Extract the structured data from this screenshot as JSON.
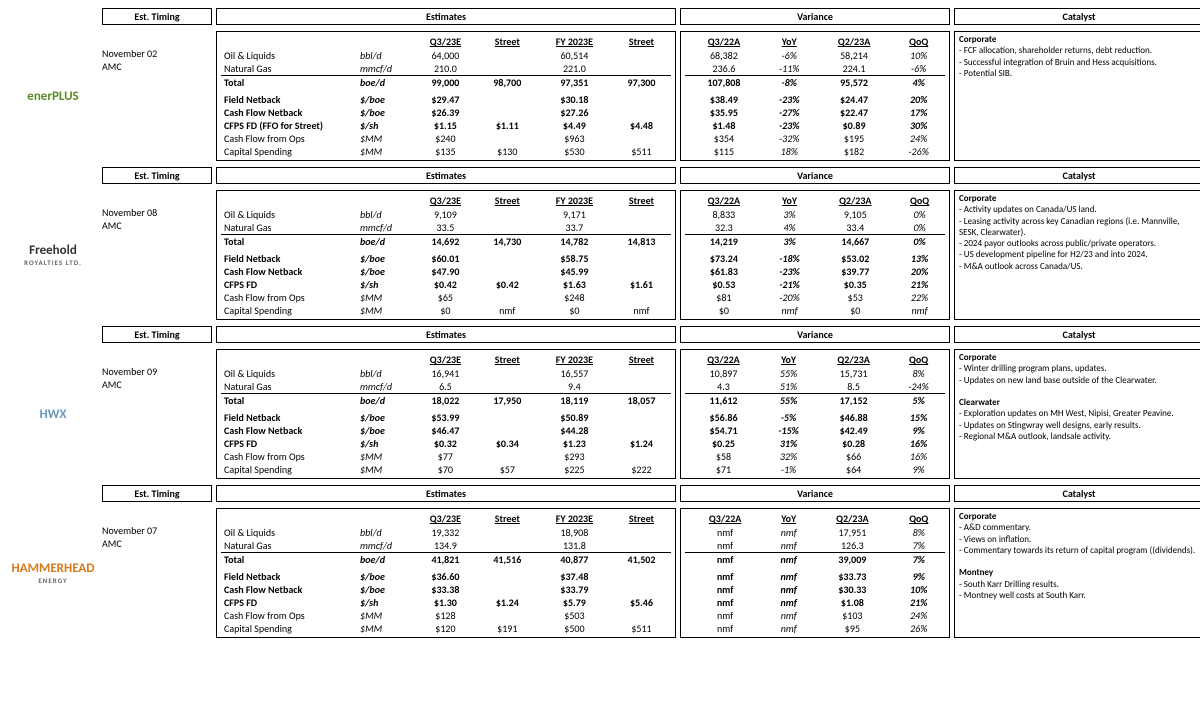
{
  "headers": {
    "timing": "Est. Timing",
    "estimates": "Estimates",
    "variance": "Variance",
    "catalyst": "Catalyst"
  },
  "est_cols": [
    "Q3/23E",
    "Street",
    "FY 2023E",
    "Street"
  ],
  "var_cols": [
    "Q3/22A",
    "YoY",
    "Q2/23A",
    "QoQ"
  ],
  "metrics": [
    {
      "label": "Oil & Liquids",
      "unit": "bbl/d",
      "bold": false,
      "top": false
    },
    {
      "label": "Natural Gas",
      "unit": "mmcf/d",
      "bold": false,
      "top": false
    },
    {
      "label": "Total",
      "unit": "boe/d",
      "bold": true,
      "top": true
    },
    {
      "label": "Field Netback",
      "unit": "$/boe",
      "bold": true,
      "top": false,
      "gap": true
    },
    {
      "label": "Cash Flow Netback",
      "unit": "$/boe",
      "bold": true,
      "top": false
    },
    {
      "label": "CFPS FD",
      "unit": "$/sh",
      "bold": true,
      "top": false
    },
    {
      "label": "Cash Flow from Ops",
      "unit": "$MM",
      "bold": false,
      "top": false
    },
    {
      "label": "Capital Spending",
      "unit": "$MM",
      "bold": false,
      "top": false
    }
  ],
  "companies": [
    {
      "logo": "enerPLUS",
      "logo_color": "#5b8c2a",
      "timing": "November 02",
      "amc": "AMC",
      "cfps_label": "CFPS FD (FFO for Street)",
      "est": [
        [
          "64,000",
          "",
          "60,514",
          ""
        ],
        [
          "210.0",
          "",
          "221.0",
          ""
        ],
        [
          "99,000",
          "98,700",
          "97,351",
          "97,300"
        ],
        [
          "$29.47",
          "",
          "$30.18",
          ""
        ],
        [
          "$26.39",
          "",
          "$27.26",
          ""
        ],
        [
          "$1.15",
          "$1.11",
          "$4.49",
          "$4.48"
        ],
        [
          "$240",
          "",
          "$963",
          ""
        ],
        [
          "$135",
          "$130",
          "$530",
          "$511"
        ]
      ],
      "var": [
        [
          "68,382",
          "-6%",
          "58,214",
          "10%"
        ],
        [
          "236.6",
          "-11%",
          "224.1",
          "-6%"
        ],
        [
          "107,808",
          "-8%",
          "95,572",
          "4%"
        ],
        [
          "$38.49",
          "-23%",
          "$24.47",
          "20%"
        ],
        [
          "$35.95",
          "-27%",
          "$22.47",
          "17%"
        ],
        [
          "$1.48",
          "-23%",
          "$0.89",
          "30%"
        ],
        [
          "$354",
          "-32%",
          "$195",
          "24%"
        ],
        [
          "$115",
          "18%",
          "$182",
          "-26%"
        ]
      ],
      "catalyst": "<b>Corporate</b><br>- FCF allocation, shareholder returns, debt reduction.<br>- Successful integration of Bruin and Hess acquisitions.<br>- Potential SIB."
    },
    {
      "logo": "Freehold",
      "logo_sub": "ROYALTIES LTD.",
      "logo_color": "#333",
      "timing": "November 08",
      "amc": "AMC",
      "est": [
        [
          "9,109",
          "",
          "9,171",
          ""
        ],
        [
          "33.5",
          "",
          "33.7",
          ""
        ],
        [
          "14,692",
          "14,730",
          "14,782",
          "14,813"
        ],
        [
          "$60.01",
          "",
          "$58.75",
          ""
        ],
        [
          "$47.90",
          "",
          "$45.99",
          ""
        ],
        [
          "$0.42",
          "$0.42",
          "$1.63",
          "$1.61"
        ],
        [
          "$65",
          "",
          "$248",
          ""
        ],
        [
          "$0",
          "nmf",
          "$0",
          "nmf"
        ]
      ],
      "var": [
        [
          "8,833",
          "3%",
          "9,105",
          "0%"
        ],
        [
          "32.3",
          "4%",
          "33.4",
          "0%"
        ],
        [
          "14,219",
          "3%",
          "14,667",
          "0%"
        ],
        [
          "$73.24",
          "-18%",
          "$53.02",
          "13%"
        ],
        [
          "$61.83",
          "-23%",
          "$39.77",
          "20%"
        ],
        [
          "$0.53",
          "-21%",
          "$0.35",
          "21%"
        ],
        [
          "$81",
          "-20%",
          "$53",
          "22%"
        ],
        [
          "$0",
          "nmf",
          "$0",
          "nmf"
        ]
      ],
      "catalyst": "<b>Corporate</b><br>- Activity updates on Canada/US land.<br>- Leasing activity across key Canadian regions (i.e. Mannville, SESK, Clearwater).<br>- 2024 payor outlooks across public/private operators.<br>- US development pipeline for H2/23 and into 2024.<br>- M&A outlook across Canada/US."
    },
    {
      "logo": "HWX",
      "logo_color": "#6a9bc4",
      "timing": "November 09",
      "amc": "AMC",
      "est": [
        [
          "16,941",
          "",
          "16,557",
          ""
        ],
        [
          "6.5",
          "",
          "9.4",
          ""
        ],
        [
          "18,022",
          "17,950",
          "18,119",
          "18,057"
        ],
        [
          "$53.99",
          "",
          "$50.89",
          ""
        ],
        [
          "$46.47",
          "",
          "$44.28",
          ""
        ],
        [
          "$0.32",
          "$0.34",
          "$1.23",
          "$1.24"
        ],
        [
          "$77",
          "",
          "$293",
          ""
        ],
        [
          "$70",
          "$57",
          "$225",
          "$222"
        ]
      ],
      "var": [
        [
          "10,897",
          "55%",
          "15,731",
          "8%"
        ],
        [
          "4.3",
          "51%",
          "8.5",
          "-24%"
        ],
        [
          "11,612",
          "55%",
          "17,152",
          "5%"
        ],
        [
          "$56.86",
          "-5%",
          "$46.88",
          "15%"
        ],
        [
          "$54.71",
          "-15%",
          "$42.49",
          "9%"
        ],
        [
          "$0.25",
          "31%",
          "$0.28",
          "16%"
        ],
        [
          "$58",
          "32%",
          "$66",
          "16%"
        ],
        [
          "$71",
          "-1%",
          "$64",
          "9%"
        ]
      ],
      "catalyst": "<b>Corporate</b><br>- Winter drilling program plans, updates.<br>- Updates on new land base outside of the Clearwater.<br><br><b>Clearwater</b><br>- Exploration updates on MH West, Nipisi, Greater Peavine.<br>- Updates on Stingwray well designs, early results.<br>- Regional M&A outlook, landsale activity."
    },
    {
      "logo": "HAMMERHEAD",
      "logo_sub": "ENERGY",
      "logo_color": "#d97a1a",
      "timing": "November 07",
      "amc": "AMC",
      "est": [
        [
          "19,332",
          "",
          "18,908",
          ""
        ],
        [
          "134.9",
          "",
          "131.8",
          ""
        ],
        [
          "41,821",
          "41,516",
          "40,877",
          "41,502"
        ],
        [
          "$36.60",
          "",
          "$37.48",
          ""
        ],
        [
          "$33.38",
          "",
          "$33.79",
          ""
        ],
        [
          "$1.30",
          "$1.24",
          "$5.79",
          "$5.46"
        ],
        [
          "$128",
          "",
          "$503",
          ""
        ],
        [
          "$120",
          "$191",
          "$500",
          "$511"
        ]
      ],
      "var": [
        [
          "nmf",
          "nmf",
          "17,951",
          "8%"
        ],
        [
          "nmf",
          "nmf",
          "126.3",
          "7%"
        ],
        [
          "nmf",
          "nmf",
          "39,009",
          "7%"
        ],
        [
          "nmf",
          "nmf",
          "$33.73",
          "9%"
        ],
        [
          "nmf",
          "nmf",
          "$30.33",
          "10%"
        ],
        [
          "nmf",
          "nmf",
          "$1.08",
          "21%"
        ],
        [
          "nmf",
          "nmf",
          "$103",
          "24%"
        ],
        [
          "nmf",
          "nmf",
          "$95",
          "26%"
        ]
      ],
      "catalyst": "<b>Corporate</b><br>- A&D commentary.<br>- Views on inflation.<br>- Commentary towards its return of capital program ((dividends).<br><br><b>Montney</b><br>- South Karr Drilling results.<br>- Montney well costs at South Karr."
    }
  ]
}
